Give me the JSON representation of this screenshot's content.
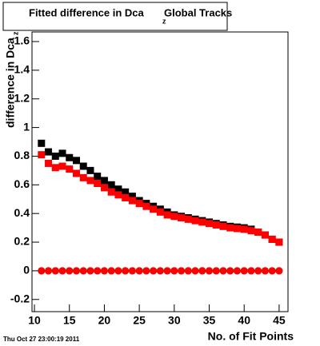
{
  "chart_data": {
    "type": "scatter",
    "title": "Fitted difference in Dca",
    "title_subscript": "z",
    "title_suffix": "Global Tracks",
    "y_label": "difference in Dca",
    "y_label_subscript": "z",
    "x_label": "No. of Fit Points",
    "footer": "Thu Oct 27 23:00:19 2011",
    "x": [
      11,
      12,
      13,
      14,
      15,
      16,
      17,
      18,
      19,
      20,
      21,
      22,
      23,
      24,
      25,
      26,
      27,
      28,
      29,
      30,
      31,
      32,
      33,
      34,
      35,
      36,
      37,
      38,
      39,
      40,
      41,
      42,
      43,
      44,
      45
    ],
    "series": [
      {
        "color": "#000000",
        "marker": "square",
        "values": [
          0.89,
          0.83,
          0.8,
          0.82,
          0.79,
          0.77,
          0.73,
          0.7,
          0.66,
          0.63,
          0.6,
          0.57,
          0.55,
          0.52,
          0.49,
          0.47,
          0.45,
          0.43,
          0.41,
          0.39,
          0.38,
          0.37,
          0.36,
          0.35,
          0.34,
          0.33,
          0.32,
          0.31,
          0.305,
          0.3,
          0.29,
          0.27,
          0.25,
          0.22,
          0.2
        ]
      },
      {
        "color": "#ff0000",
        "marker": "square",
        "values": [
          0.81,
          0.75,
          0.72,
          0.73,
          0.71,
          0.68,
          0.65,
          0.63,
          0.61,
          0.58,
          0.55,
          0.53,
          0.51,
          0.49,
          0.47,
          0.45,
          0.43,
          0.41,
          0.39,
          0.38,
          0.37,
          0.36,
          0.35,
          0.34,
          0.33,
          0.32,
          0.31,
          0.3,
          0.295,
          0.29,
          0.28,
          0.27,
          0.25,
          0.22,
          0.2
        ]
      },
      {
        "color": "#000000",
        "marker": "circle",
        "values": [
          0,
          0,
          0,
          0,
          0,
          0,
          0,
          0,
          0,
          0,
          0,
          0,
          0,
          0,
          0,
          0,
          0,
          0,
          0,
          0,
          0,
          0,
          0,
          0,
          0,
          0,
          0,
          0,
          0,
          0,
          0,
          0,
          0,
          0,
          0
        ]
      },
      {
        "color": "#ff0000",
        "marker": "circle",
        "values": [
          0,
          0,
          0,
          0,
          0,
          0,
          0,
          0,
          0,
          0,
          0,
          0,
          0,
          0,
          0,
          0,
          0,
          0,
          0,
          0,
          0,
          0,
          0,
          0,
          0,
          0,
          0,
          0,
          0,
          0,
          0,
          0,
          0,
          0,
          0
        ]
      }
    ],
    "xlim": [
      9.65,
      46.27
    ],
    "ylim": [
      -0.285,
      1.667
    ],
    "xticks": [
      10,
      15,
      20,
      25,
      30,
      35,
      40,
      45
    ],
    "yticks": [
      -0.2,
      0,
      0.2,
      0.4,
      0.6,
      0.8,
      1,
      1.2,
      1.4,
      1.6
    ]
  }
}
